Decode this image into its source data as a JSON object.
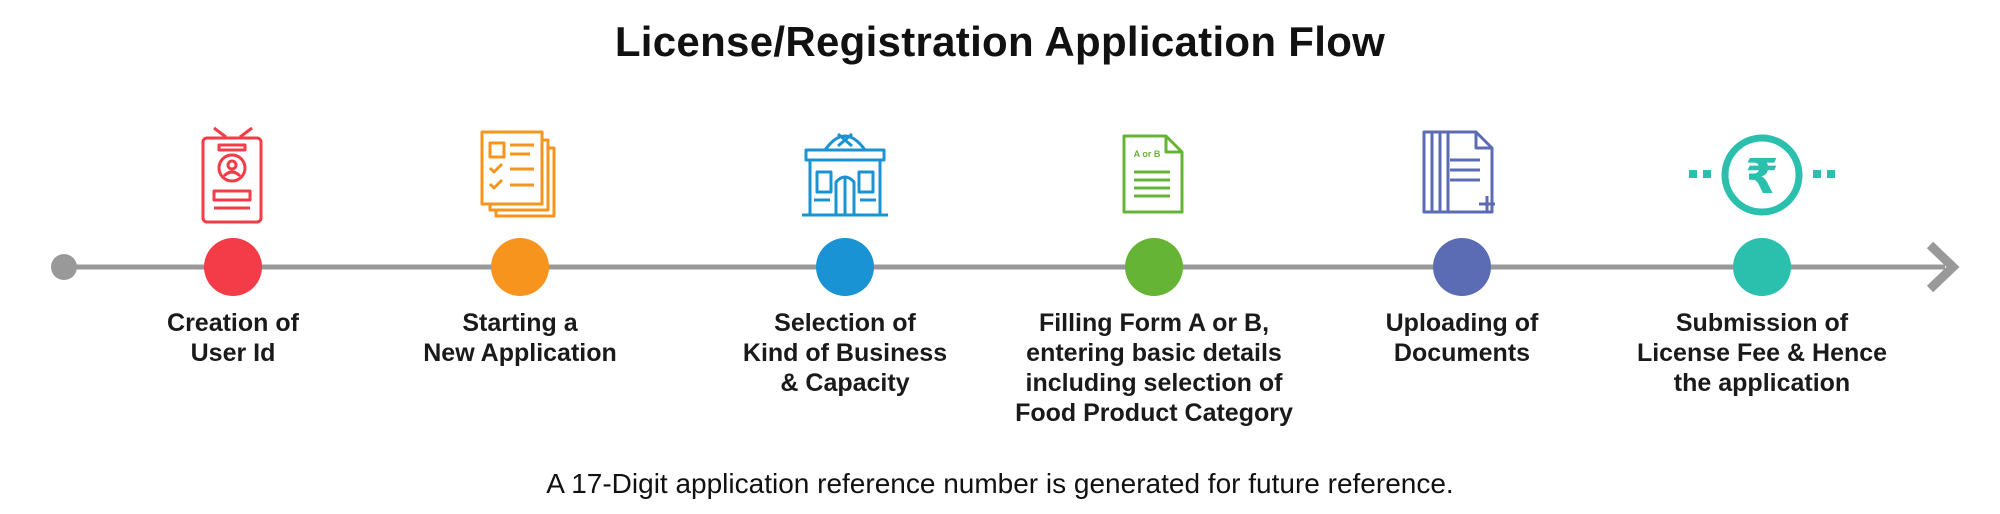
{
  "title": "License/Registration Application Flow",
  "steps": [
    {
      "lines": [
        "Creation of",
        "User Id"
      ],
      "color": "#f33c47",
      "icon": "id-card-icon"
    },
    {
      "lines": [
        "Starting a",
        "New Application"
      ],
      "color": "#f7941d",
      "icon": "application-form-icon"
    },
    {
      "lines": [
        "Selection of",
        "Kind of Business",
        "& Capacity"
      ],
      "color": "#1a93d4",
      "icon": "restaurant-building-icon"
    },
    {
      "lines": [
        "Filling Form A or B,",
        "entering basic details",
        "including selection of",
        "Food Product Category"
      ],
      "color": "#66b436",
      "icon": "form-document-icon",
      "icon_text": "A or B"
    },
    {
      "lines": [
        "Uploading of",
        "Documents"
      ],
      "color": "#5b6cb5",
      "icon": "upload-documents-icon"
    },
    {
      "lines": [
        "Submission of",
        "License Fee & Hence",
        "the application"
      ],
      "color": "#2bbfae",
      "icon": "rupee-coin-icon",
      "icon_text": "₹"
    }
  ],
  "line_color": "#999999",
  "footnote": "A 17-Digit application reference number is generated for future reference."
}
